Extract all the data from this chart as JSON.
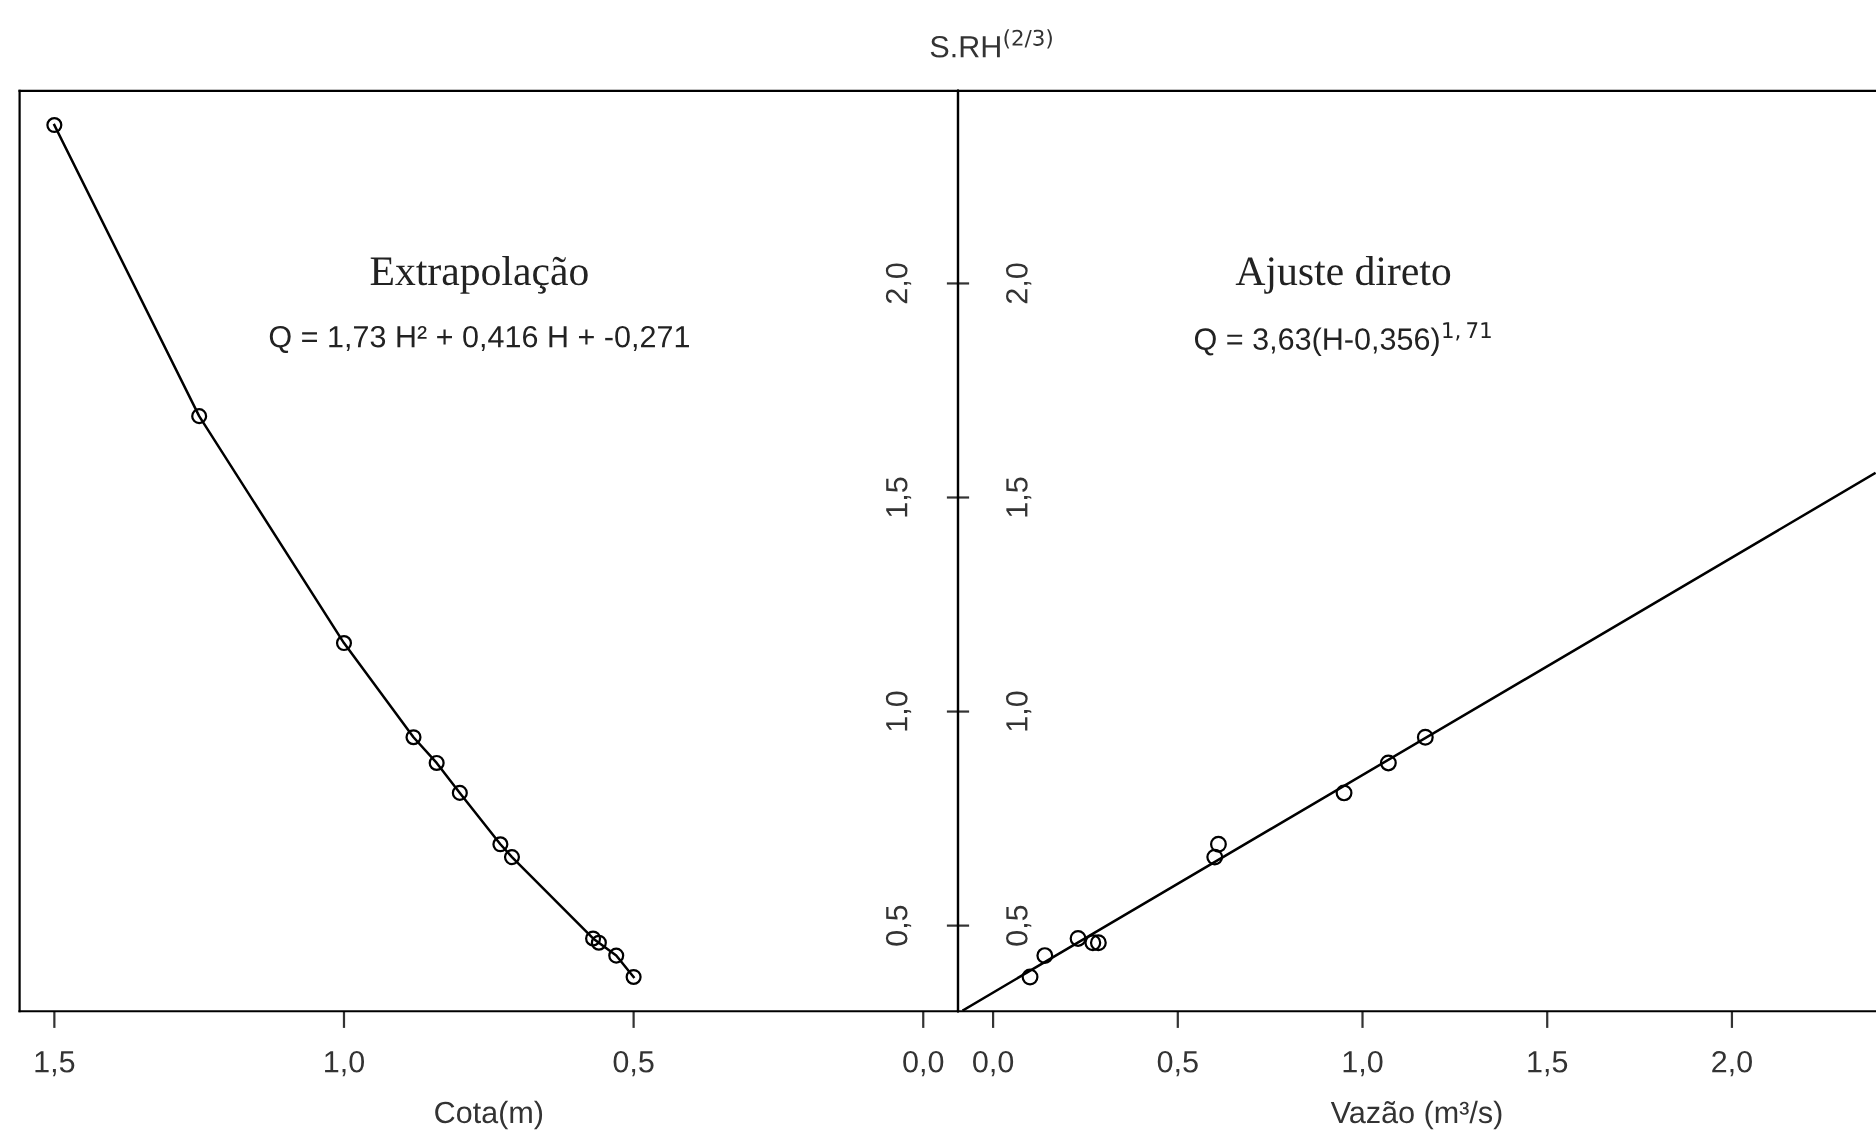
{
  "chart_data": [
    {
      "type": "line",
      "xlabel": "Cota(m)",
      "annotations": [
        "Extrapolação",
        "Q = 1,73 H² + 0,416 H + -0,271"
      ],
      "series": [
        {
          "color": "#000000",
          "marker": "circle",
          "line_style": "solid",
          "x": [
            1.5,
            1.25,
            1.0,
            0.88,
            0.84,
            0.8,
            0.73,
            0.71,
            0.57,
            0.56,
            0.53,
            0.5
          ],
          "values": [
            2.37,
            1.69,
            1.16,
            0.94,
            0.88,
            0.81,
            0.69,
            0.66,
            0.47,
            0.46,
            0.43,
            0.38
          ]
        }
      ],
      "xlim": [
        1.56,
        -0.06
      ],
      "xticks": [
        {
          "value": 1.5,
          "label": "1,5"
        },
        {
          "value": 1.0,
          "label": "1,0"
        },
        {
          "value": 0.5,
          "label": "0,5"
        },
        {
          "value": 0.0,
          "label": "0,0"
        }
      ],
      "ylim": [
        0.3,
        2.45
      ],
      "tick_labels": "x",
      "grid": false,
      "legend": false
    },
    {
      "type": "scatter",
      "xlabel": "Vazão (m³/s)",
      "title": "S.RH$^{(2/3)}$",
      "annotations": [
        "Ajuste direto",
        "Q = 3,63(H-0,356)$^{1,71}$"
      ],
      "series": [
        {
          "color": "#000000",
          "marker": "circle",
          "x": [
            0.1,
            0.14,
            0.23,
            0.27,
            0.285,
            0.6,
            0.61,
            0.95,
            1.07,
            1.17
          ],
          "values": [
            0.38,
            0.43,
            0.47,
            0.46,
            0.46,
            0.66,
            0.69,
            0.81,
            0.88,
            0.94
          ]
        },
        {
          "type": "line",
          "color": "#000000",
          "marker": "none",
          "line_style": "solid",
          "x": [
            -0.08,
            2.386
          ],
          "values": [
            0.303,
            1.556
          ]
        }
      ],
      "xlim": [
        -0.095,
        2.39
      ],
      "xticks": [
        {
          "value": 0.0,
          "label": "0,0"
        },
        {
          "value": 0.5,
          "label": "0,5"
        },
        {
          "value": 1.0,
          "label": "1,0"
        },
        {
          "value": 1.5,
          "label": "1,5"
        },
        {
          "value": 2.0,
          "label": "2,0"
        }
      ],
      "ylim": [
        0.3,
        2.45
      ],
      "yticks": [
        {
          "value": 0.5,
          "label": "0,5"
        },
        {
          "value": 1.0,
          "label": "1,0"
        },
        {
          "value": 1.5,
          "label": "1,5"
        },
        {
          "value": 2.0,
          "label": "2,0"
        }
      ],
      "y2lim": [
        0.3,
        2.45
      ],
      "y2ticks": [
        {
          "value": 0.5,
          "label": "0,5"
        },
        {
          "value": 1.0,
          "label": "1,0"
        },
        {
          "value": 1.5,
          "label": "1,5"
        },
        {
          "value": 2.0,
          "label": "2,0"
        }
      ],
      "grid": false,
      "legend": false
    }
  ]
}
